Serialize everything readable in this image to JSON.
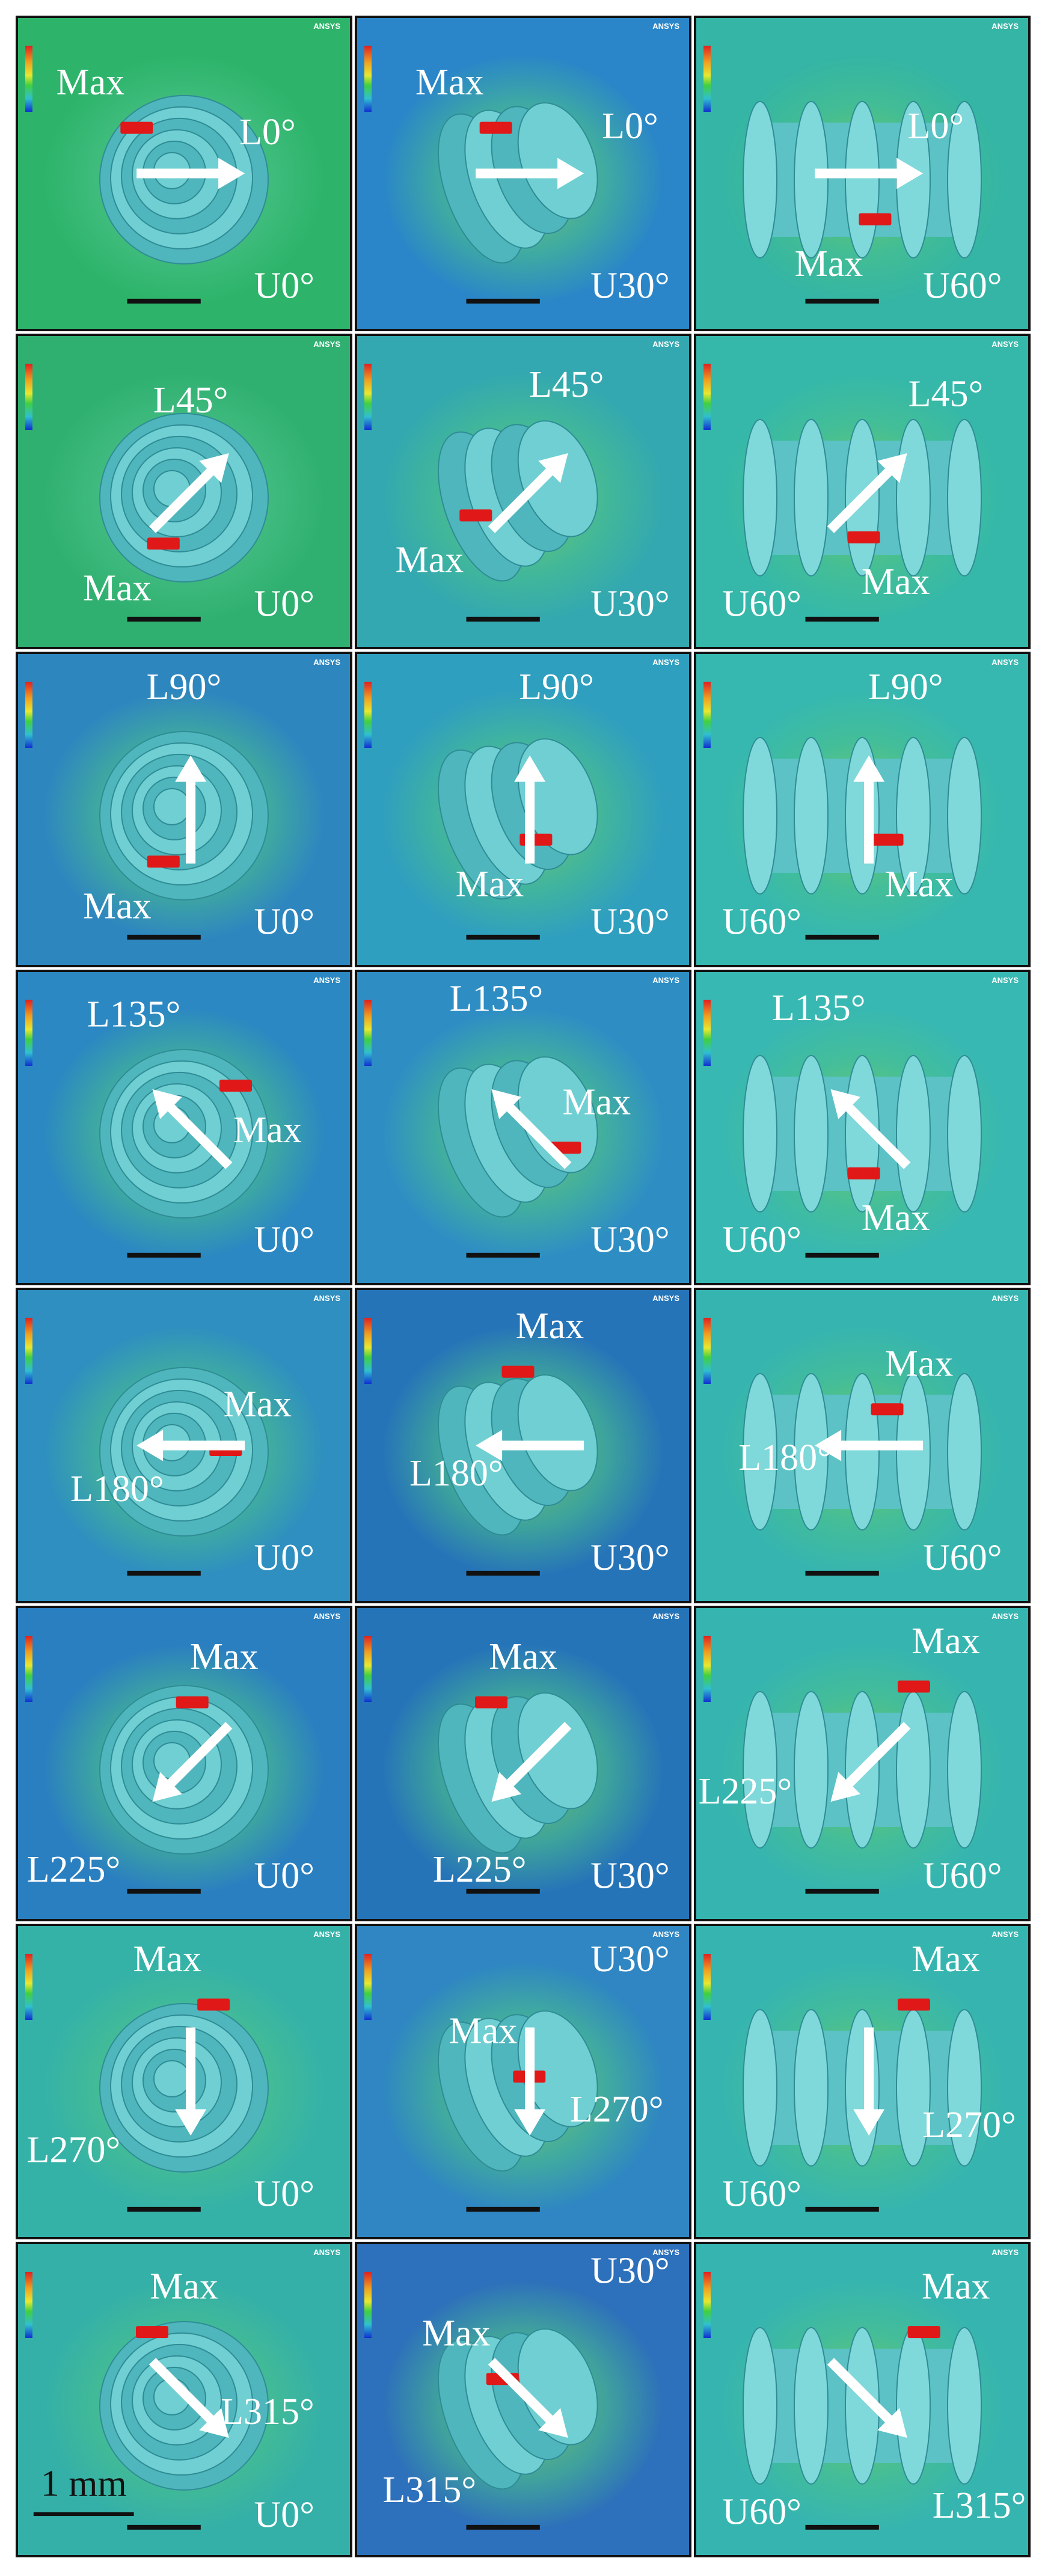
{
  "software": "ANSYS",
  "scale_bar": "1 mm",
  "rows": [
    [
      {
        "max": "Max",
        "load": "L0°",
        "inclination": "U0°"
      },
      {
        "max": "Max",
        "load": "L0°",
        "inclination": "U30°"
      },
      {
        "max": "Max",
        "load": "L0°",
        "inclination": "U60°"
      }
    ],
    [
      {
        "max": "Max",
        "load": "L45°",
        "inclination": "U0°"
      },
      {
        "max": "Max",
        "load": "L45°",
        "inclination": "U30°"
      },
      {
        "max": "Max",
        "load": "L45°",
        "inclination": "U60°"
      }
    ],
    [
      {
        "max": "Max",
        "load": "L90°",
        "inclination": "U0°"
      },
      {
        "max": "Max",
        "load": "L90°",
        "inclination": "U30°"
      },
      {
        "max": "Max",
        "load": "L90°",
        "inclination": "U60°"
      }
    ],
    [
      {
        "max": "Max",
        "load": "L135°",
        "inclination": "U0°"
      },
      {
        "max": "Max",
        "load": "L135°",
        "inclination": "U30°"
      },
      {
        "max": "Max",
        "load": "L135°",
        "inclination": "U60°"
      }
    ],
    [
      {
        "max": "Max",
        "load": "L180°",
        "inclination": "U0°"
      },
      {
        "max": "Max",
        "load": "L180°",
        "inclination": "U30°"
      },
      {
        "max": "Max",
        "load": "L180°",
        "inclination": "U60°"
      }
    ],
    [
      {
        "max": "Max",
        "load": "L225°",
        "inclination": "U0°"
      },
      {
        "max": "Max",
        "load": "L225°",
        "inclination": "U30°"
      },
      {
        "max": "Max",
        "load": "L225°",
        "inclination": "U60°"
      }
    ],
    [
      {
        "max": "Max",
        "load": "L270°",
        "inclination": "U0°"
      },
      {
        "max": "Max",
        "load": "L270°",
        "inclination": "U30°"
      },
      {
        "max": "Max",
        "load": "L270°",
        "inclination": "U60°"
      }
    ],
    [
      {
        "max": "Max",
        "load": "L315°",
        "inclination": "U0°"
      },
      {
        "max": "Max",
        "load": "L315°",
        "inclination": "U30°"
      },
      {
        "max": "Max",
        "load": "L315°",
        "inclination": "U60°"
      }
    ]
  ]
}
